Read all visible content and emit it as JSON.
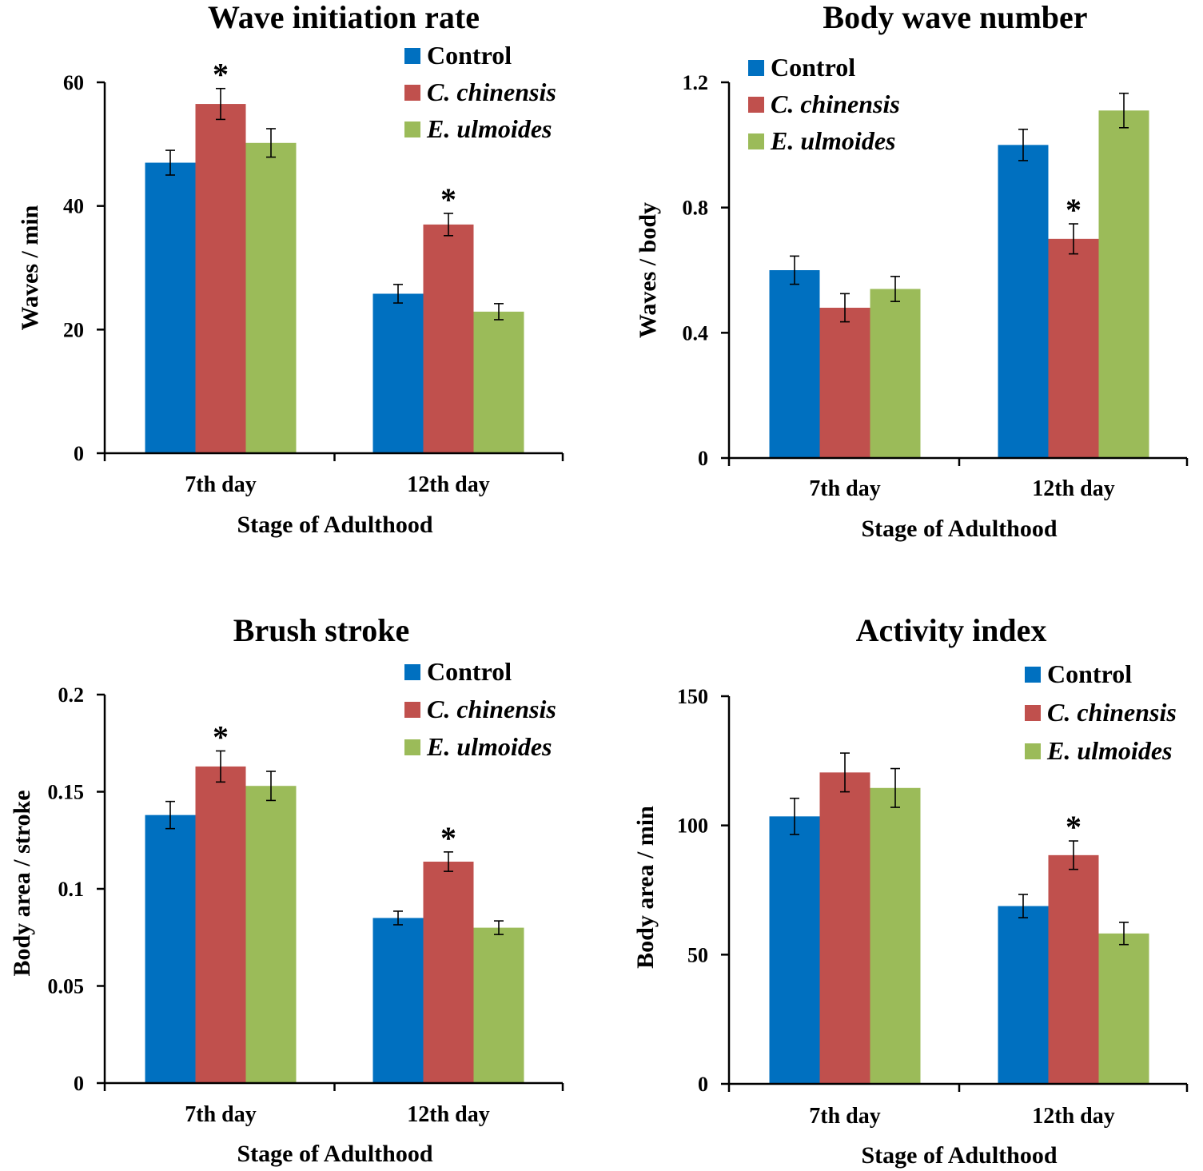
{
  "figure_title": "",
  "chart_data": [
    {
      "type": "bar",
      "title": "Wave initiation rate",
      "xlabel": "Stage of Adulthood",
      "ylabel": "Waves / min",
      "ylim": [
        0,
        60
      ],
      "yticks": [
        0,
        20,
        40,
        60
      ],
      "ytick_labels": [
        "0",
        "20",
        "40",
        "60"
      ],
      "categories": [
        "7th day",
        "12th day"
      ],
      "legend_position": "top-right",
      "series": [
        {
          "name": "Control",
          "italic": false,
          "color": "#0070C0",
          "values": [
            47,
            25.8
          ],
          "errors": [
            2,
            1.5
          ]
        },
        {
          "name": "C. chinensis",
          "italic": true,
          "color": "#C0504D",
          "values": [
            56.5,
            37
          ],
          "errors": [
            2.5,
            1.8
          ]
        },
        {
          "name": "E. ulmoides",
          "italic": true,
          "color": "#9BBB59",
          "values": [
            50.2,
            22.9
          ],
          "errors": [
            2.3,
            1.3
          ]
        }
      ],
      "annotations": [
        {
          "text": "*",
          "category": 0,
          "series": 1
        },
        {
          "text": "*",
          "category": 1,
          "series": 1
        }
      ]
    },
    {
      "type": "bar",
      "title": "Body wave number",
      "xlabel": "Stage of Adulthood",
      "ylabel": "Waves / body",
      "ylim": [
        0,
        1.2
      ],
      "yticks": [
        0,
        0.4,
        0.8,
        1.2
      ],
      "ytick_labels": [
        "0",
        "0.4",
        "0.8",
        "1.2"
      ],
      "categories": [
        "7th day",
        "12th day"
      ],
      "legend_position": "top-left",
      "series": [
        {
          "name": "Control",
          "italic": false,
          "color": "#0070C0",
          "values": [
            0.6,
            1.0
          ],
          "errors": [
            0.045,
            0.05
          ]
        },
        {
          "name": "C. chinensis",
          "italic": true,
          "color": "#C0504D",
          "values": [
            0.48,
            0.7
          ],
          "errors": [
            0.045,
            0.048
          ]
        },
        {
          "name": "E. ulmoides",
          "italic": true,
          "color": "#9BBB59",
          "values": [
            0.54,
            1.11
          ],
          "errors": [
            0.04,
            0.055
          ]
        }
      ],
      "annotations": [
        {
          "text": "*",
          "category": 1,
          "series": 1
        }
      ]
    },
    {
      "type": "bar",
      "title": "Brush stroke",
      "xlabel": "Stage of Adulthood",
      "ylabel": "Body area / stroke",
      "ylim": [
        0,
        0.2
      ],
      "yticks": [
        0,
        0.05,
        0.1,
        0.15,
        0.2
      ],
      "ytick_labels": [
        "0",
        "0.05",
        "0.1",
        "0.15",
        "0.2"
      ],
      "categories": [
        "7th day",
        "12th day"
      ],
      "legend_position": "top-right",
      "series": [
        {
          "name": "Control",
          "italic": false,
          "color": "#0070C0",
          "values": [
            0.138,
            0.085
          ],
          "errors": [
            0.007,
            0.0035
          ]
        },
        {
          "name": "C. chinensis",
          "italic": true,
          "color": "#C0504D",
          "values": [
            0.163,
            0.114
          ],
          "errors": [
            0.008,
            0.005
          ]
        },
        {
          "name": "E. ulmoides",
          "italic": true,
          "color": "#9BBB59",
          "values": [
            0.153,
            0.08
          ],
          "errors": [
            0.0075,
            0.0035
          ]
        }
      ],
      "annotations": [
        {
          "text": "*",
          "category": 0,
          "series": 1
        },
        {
          "text": "*",
          "category": 1,
          "series": 1
        }
      ]
    },
    {
      "type": "bar",
      "title": "Activity index",
      "xlabel": "Stage of Adulthood",
      "ylabel": "Body area / min",
      "ylim": [
        0,
        150
      ],
      "yticks": [
        0,
        50,
        100,
        150
      ],
      "ytick_labels": [
        "0",
        "50",
        "100",
        "150"
      ],
      "categories": [
        "7th day",
        "12th day"
      ],
      "legend_position": "top-right",
      "series": [
        {
          "name": "Control",
          "italic": false,
          "color": "#0070C0",
          "values": [
            103.5,
            68.8
          ],
          "errors": [
            7,
            4.5
          ]
        },
        {
          "name": "C. chinensis",
          "italic": true,
          "color": "#C0504D",
          "values": [
            120.5,
            88.5
          ],
          "errors": [
            7.5,
            5.5
          ]
        },
        {
          "name": "E. ulmoides",
          "italic": true,
          "color": "#9BBB59",
          "values": [
            114.5,
            58.2
          ],
          "errors": [
            7.5,
            4.3
          ]
        }
      ],
      "annotations": [
        {
          "text": "*",
          "category": 1,
          "series": 1
        }
      ]
    }
  ]
}
